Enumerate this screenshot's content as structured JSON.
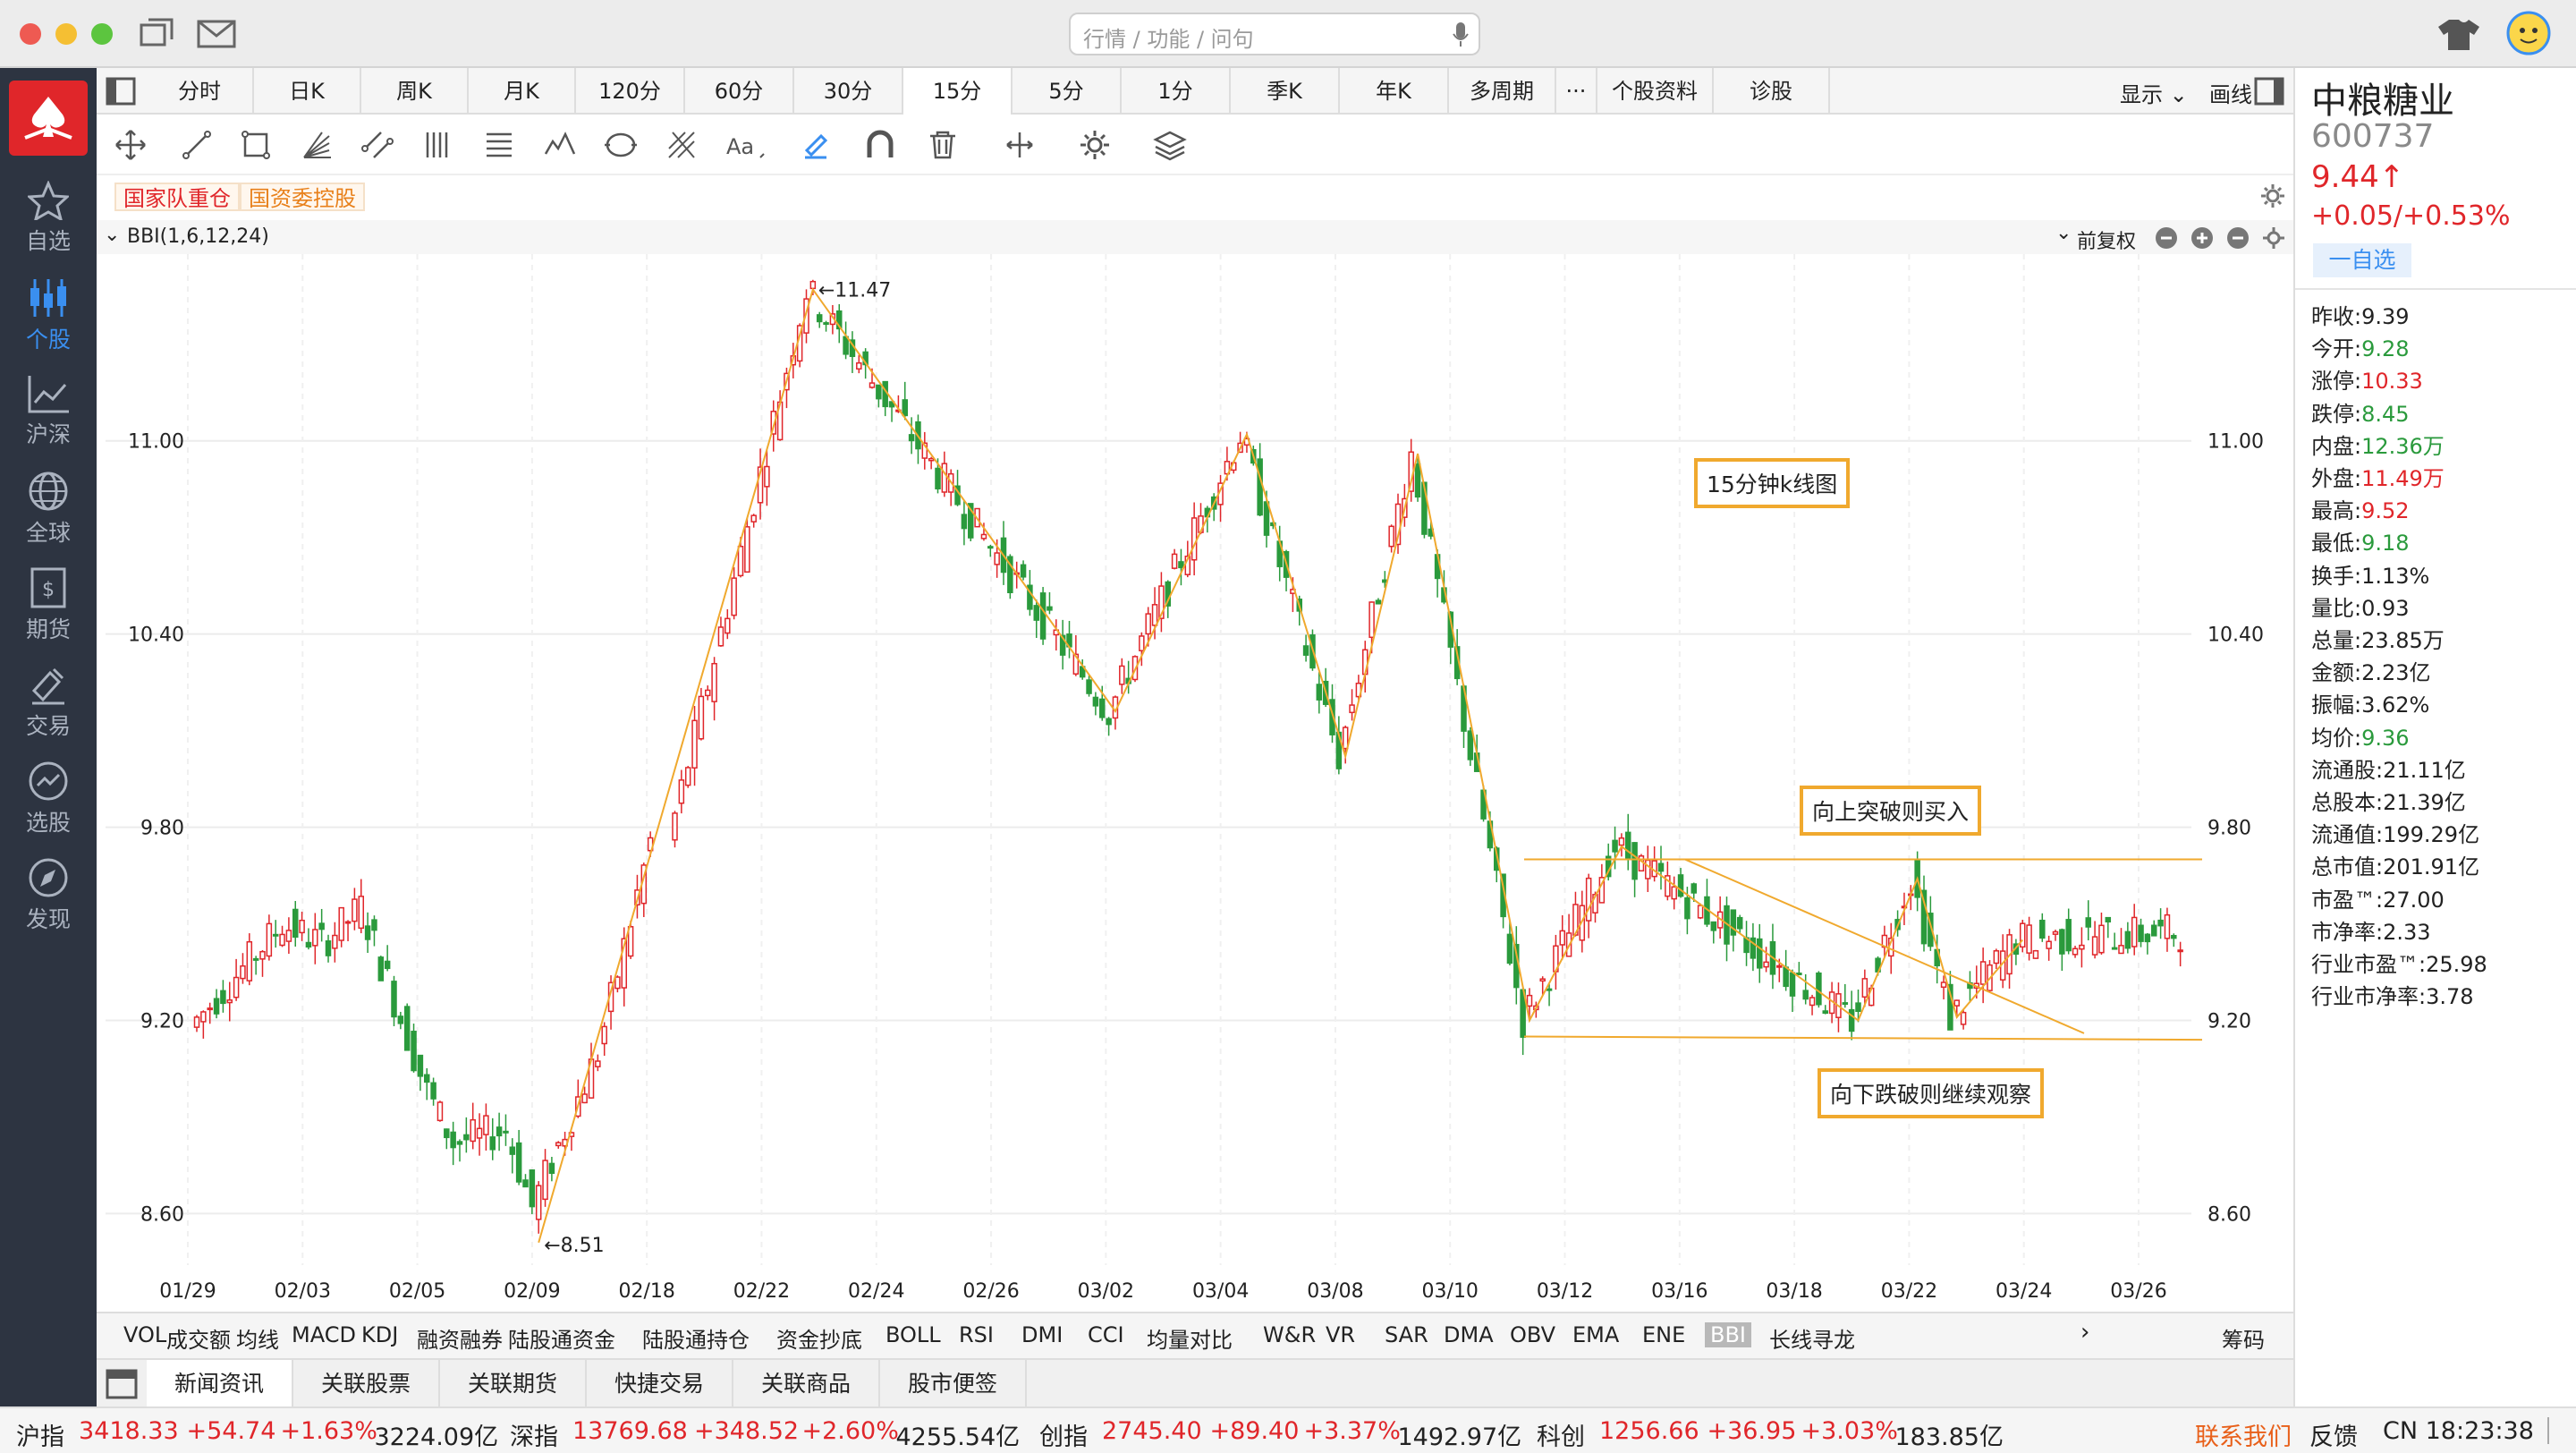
{
  "search": {
    "placeholder": "行情 / 功能 / 问句"
  },
  "sidebar": {
    "items": [
      {
        "label": "自选",
        "icon": "star-icon"
      },
      {
        "label": "个股",
        "icon": "candlestick-icon"
      },
      {
        "label": "沪深",
        "icon": "trend-chart-icon"
      },
      {
        "label": "全球",
        "icon": "globe-icon"
      },
      {
        "label": "期货",
        "icon": "futures-icon"
      },
      {
        "label": "交易",
        "icon": "trade-icon"
      },
      {
        "label": "选股",
        "icon": "stock-picker-icon"
      },
      {
        "label": "发现",
        "icon": "compass-icon"
      }
    ]
  },
  "periods": [
    "分时",
    "日K",
    "周K",
    "月K",
    "120分",
    "60分",
    "30分",
    "15分",
    "5分",
    "1分",
    "季K",
    "年K",
    "多周期",
    "···",
    "个股资料",
    "诊股"
  ],
  "period_active": "15分",
  "period_right": {
    "display": "显示",
    "draw": "画线"
  },
  "tags": [
    "国家队重仓",
    "国资委控股"
  ],
  "indicator_title": "BBI(1,6,12,24)",
  "adjust": "前复权",
  "indicators": [
    "VOL",
    "成交额",
    "均线",
    "MACD",
    "KDJ",
    "融资融券",
    "陆股通资金",
    "陆股通持仓",
    "资金抄底",
    "BOLL",
    "RSI",
    "DMI",
    "CCI",
    "均量对比",
    "W&R",
    "VR",
    "SAR",
    "DMA",
    "OBV",
    "EMA",
    "ENE",
    "BBI",
    "长线寻龙"
  ],
  "indicator_active": "BBI",
  "chips": "筹码",
  "news_tabs": [
    "新闻资讯",
    "关联股票",
    "关联期货",
    "快捷交易",
    "关联商品",
    "股市便签"
  ],
  "status": {
    "indices": [
      {
        "name": "沪指",
        "price": "3418.33",
        "chg": "+54.74",
        "pct": "+1.63%",
        "amt": "3224.09亿"
      },
      {
        "name": "深指",
        "price": "13769.68",
        "chg": "+348.52",
        "pct": "+2.60%",
        "amt": "4255.54亿"
      },
      {
        "name": "创指",
        "price": "2745.40",
        "chg": "+89.40",
        "pct": "+3.37%",
        "amt": "1492.97亿"
      },
      {
        "name": "科创",
        "price": "1256.66",
        "chg": "+36.95",
        "pct": "+3.03%",
        "amt": "183.85亿"
      }
    ],
    "contact": "联系我们",
    "feedback": "反馈",
    "clock": "CN 18:23:38"
  },
  "stock": {
    "name": "中粮糖业",
    "code": "600737",
    "price": "9.44↑",
    "change": "+0.05/+0.53%",
    "watch_btn": "一自选",
    "fields": [
      {
        "k": "昨收:",
        "v": "9.39",
        "c": "black"
      },
      {
        "k": "今开:",
        "v": "9.28",
        "c": "green"
      },
      {
        "k": "涨停:",
        "v": "10.33",
        "c": "red"
      },
      {
        "k": "跌停:",
        "v": "8.45",
        "c": "green"
      },
      {
        "k": "内盘:",
        "v": "12.36万",
        "c": "green"
      },
      {
        "k": "外盘:",
        "v": "11.49万",
        "c": "red"
      },
      {
        "k": "最高:",
        "v": "9.52",
        "c": "red"
      },
      {
        "k": "最低:",
        "v": "9.18",
        "c": "green"
      },
      {
        "k": "换手:",
        "v": "1.13%",
        "c": "black"
      },
      {
        "k": "量比:",
        "v": "0.93",
        "c": "black"
      },
      {
        "k": "总量:",
        "v": "23.85万",
        "c": "black"
      },
      {
        "k": "金额:",
        "v": "2.23亿",
        "c": "black"
      },
      {
        "k": "振幅:",
        "v": "3.62%",
        "c": "black"
      },
      {
        "k": "均价:",
        "v": "9.36",
        "c": "green"
      },
      {
        "k": "流通股:",
        "v": "21.11亿",
        "c": "black"
      },
      {
        "k": "总股本:",
        "v": "21.39亿",
        "c": "black"
      },
      {
        "k": "流通值:",
        "v": "199.29亿",
        "c": "black"
      },
      {
        "k": "总市值:",
        "v": "201.91亿",
        "c": "black"
      },
      {
        "k": "市盈™:",
        "v": "27.00",
        "c": "black"
      },
      {
        "k": "市净率:",
        "v": "2.33",
        "c": "black"
      },
      {
        "k": "行业市盈™:",
        "v": "25.98",
        "c": "black"
      },
      {
        "k": "行业市净率:",
        "v": "3.78",
        "c": "black"
      }
    ]
  },
  "chart_data": {
    "type": "candlestick",
    "yticks": [
      "11.00",
      "10.40",
      "9.80",
      "9.20",
      "8.60"
    ],
    "ytick_values": [
      11.0,
      10.4,
      9.8,
      9.2,
      8.6
    ],
    "ylim": [
      8.44,
      11.58
    ],
    "xticks": [
      "01/29",
      "02/03",
      "02/05",
      "02/09",
      "02/18",
      "02/22",
      "02/24",
      "02/26",
      "03/02",
      "03/04",
      "03/08",
      "03/10",
      "03/12",
      "03/16",
      "03/18",
      "03/22",
      "03/24",
      "03/26"
    ],
    "high_label": "←11.47",
    "low_label": "←8.51",
    "annotations": [
      "15分钟k线图",
      "向上突破则买入",
      "向下跌破则继续观察"
    ],
    "swing_points": [
      {
        "i": 52,
        "v": 8.51
      },
      {
        "i": 91,
        "v": 11.47
      },
      {
        "i": 137,
        "v": 10.16
      },
      {
        "i": 157,
        "v": 11.02
      },
      {
        "i": 172,
        "v": 10.02
      },
      {
        "i": 183,
        "v": 10.96
      },
      {
        "i": 200,
        "v": 9.2
      },
      {
        "i": 214,
        "v": 9.74
      },
      {
        "i": 250,
        "v": 9.2
      },
      {
        "i": 259,
        "v": 9.64
      },
      {
        "i": 265,
        "v": 9.21
      },
      {
        "i": 275,
        "v": 9.45
      }
    ],
    "support_y": 9.15,
    "resistance_y": 9.7
  },
  "colors": {
    "up": "#e0262a",
    "down": "#2a9a3c",
    "line": "#f0a92e",
    "accent": "#3a8ff0"
  }
}
